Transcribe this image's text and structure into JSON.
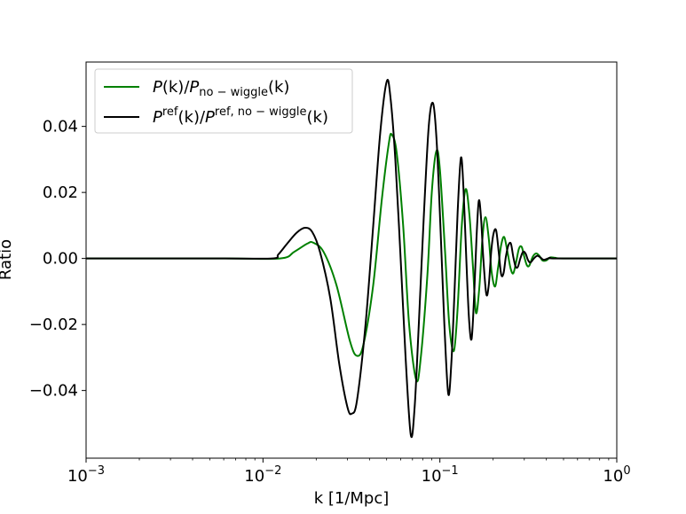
{
  "chart_data": {
    "type": "line",
    "xlabel": "k [1/Mpc]",
    "ylabel": "Ratio",
    "xscale": "log",
    "xlim": [
      0.001,
      1
    ],
    "ylim": [
      -0.0605,
      0.0595
    ],
    "x_ticks": [
      {
        "base": "10",
        "exp": "−3",
        "value": 0.001
      },
      {
        "base": "10",
        "exp": "−2",
        "value": 0.01
      },
      {
        "base": "10",
        "exp": "−1",
        "value": 0.1
      },
      {
        "base": "10",
        "exp": "0",
        "value": 1
      }
    ],
    "y_ticks": [
      {
        "label": "0.04",
        "value": 0.04
      },
      {
        "label": "0.02",
        "value": 0.02
      },
      {
        "label": "0.00",
        "value": 0.0
      },
      {
        "label": "−0.02",
        "value": -0.02
      },
      {
        "label": "−0.04",
        "value": -0.04
      }
    ],
    "grid": false,
    "legend_position": "top-left",
    "series": [
      {
        "name": "P(k)/P_no-wiggle(k)",
        "legend": {
          "main1": "P",
          "args1": "(k)/",
          "main2": "P",
          "sub2": "no − wiggle",
          "args2": "(k)"
        },
        "color": "#008000",
        "points": [
          [
            0.001,
            0
          ],
          [
            0.006,
            0
          ],
          [
            0.0125,
            0
          ],
          [
            0.015,
            0.002
          ],
          [
            0.0178,
            0.0045
          ],
          [
            0.0192,
            0.0048
          ],
          [
            0.022,
            0.002
          ],
          [
            0.026,
            -0.008
          ],
          [
            0.031,
            -0.025
          ],
          [
            0.034,
            -0.0295
          ],
          [
            0.037,
            -0.026
          ],
          [
            0.042,
            -0.008
          ],
          [
            0.047,
            0.018
          ],
          [
            0.0515,
            0.035
          ],
          [
            0.0535,
            0.0375
          ],
          [
            0.057,
            0.032
          ],
          [
            0.062,
            0.01
          ],
          [
            0.067,
            -0.02
          ],
          [
            0.0735,
            -0.0368
          ],
          [
            0.078,
            -0.03
          ],
          [
            0.085,
            -0.005
          ],
          [
            0.09,
            0.02
          ],
          [
            0.0955,
            0.0325
          ],
          [
            0.1,
            0.027
          ],
          [
            0.107,
            0.002
          ],
          [
            0.113,
            -0.02
          ],
          [
            0.12,
            -0.028
          ],
          [
            0.126,
            -0.015
          ],
          [
            0.133,
            0.01
          ],
          [
            0.14,
            0.021
          ],
          [
            0.147,
            0.013
          ],
          [
            0.154,
            -0.003
          ],
          [
            0.16,
            -0.0165
          ],
          [
            0.167,
            -0.009
          ],
          [
            0.174,
            0.006
          ],
          [
            0.181,
            0.0125
          ],
          [
            0.189,
            0.006
          ],
          [
            0.196,
            -0.004
          ],
          [
            0.205,
            -0.0085
          ],
          [
            0.213,
            -0.003
          ],
          [
            0.222,
            0.004
          ],
          [
            0.231,
            0.0065
          ],
          [
            0.241,
            0.002
          ],
          [
            0.251,
            -0.003
          ],
          [
            0.26,
            -0.0045
          ],
          [
            0.27,
            -0.001
          ],
          [
            0.28,
            0.003
          ],
          [
            0.29,
            0.0035
          ],
          [
            0.3,
            0.0005
          ],
          [
            0.31,
            -0.002
          ],
          [
            0.32,
            -0.0022
          ],
          [
            0.335,
            0.0005
          ],
          [
            0.35,
            0.0015
          ],
          [
            0.365,
            0.0008
          ],
          [
            0.38,
            -0.0006
          ],
          [
            0.4,
            -0.0006
          ],
          [
            0.42,
            0.0003
          ],
          [
            0.45,
            0.0002
          ],
          [
            0.5,
            0
          ],
          [
            1,
            0
          ]
        ]
      },
      {
        "name": "P^ref(k)/P^ref,no-wiggle(k)",
        "legend": {
          "main1": "P",
          "sup1": "ref",
          "args1": "(k)/",
          "main2": "P",
          "sup2": "ref, no − wiggle",
          "args2": "(k)"
        },
        "color": "#000000",
        "points": [
          [
            0.001,
            0
          ],
          [
            0.006,
            0
          ],
          [
            0.0113,
            0
          ],
          [
            0.0122,
            0.0012
          ],
          [
            0.0137,
            0.0045
          ],
          [
            0.0155,
            0.0078
          ],
          [
            0.0173,
            0.0093
          ],
          [
            0.019,
            0.008
          ],
          [
            0.021,
            0.002
          ],
          [
            0.024,
            -0.012
          ],
          [
            0.027,
            -0.032
          ],
          [
            0.03,
            -0.045
          ],
          [
            0.0318,
            -0.047
          ],
          [
            0.034,
            -0.043
          ],
          [
            0.038,
            -0.02
          ],
          [
            0.042,
            0.01
          ],
          [
            0.046,
            0.038
          ],
          [
            0.05,
            0.0535
          ],
          [
            0.0525,
            0.049
          ],
          [
            0.056,
            0.03
          ],
          [
            0.06,
            0
          ],
          [
            0.064,
            -0.03
          ],
          [
            0.0685,
            -0.0535
          ],
          [
            0.072,
            -0.045
          ],
          [
            0.076,
            -0.02
          ],
          [
            0.081,
            0.012
          ],
          [
            0.0865,
            0.04
          ],
          [
            0.0915,
            0.047
          ],
          [
            0.096,
            0.035
          ],
          [
            0.101,
            0.008
          ],
          [
            0.106,
            -0.02
          ],
          [
            0.1115,
            -0.041
          ],
          [
            0.116,
            -0.032
          ],
          [
            0.121,
            -0.01
          ],
          [
            0.126,
            0.014
          ],
          [
            0.1315,
            0.0305
          ],
          [
            0.136,
            0.021
          ],
          [
            0.141,
            0
          ],
          [
            0.146,
            -0.018
          ],
          [
            0.151,
            -0.0245
          ],
          [
            0.156,
            -0.012
          ],
          [
            0.161,
            0.006
          ],
          [
            0.166,
            0.0175
          ],
          [
            0.171,
            0.012
          ],
          [
            0.176,
            0
          ],
          [
            0.183,
            -0.0108
          ],
          [
            0.189,
            -0.008
          ],
          [
            0.195,
            0.002
          ],
          [
            0.201,
            0.0075
          ],
          [
            0.208,
            0.0085
          ],
          [
            0.215,
            0.002
          ],
          [
            0.222,
            -0.0048
          ],
          [
            0.229,
            -0.0045
          ],
          [
            0.236,
            0.0005
          ],
          [
            0.244,
            0.004
          ],
          [
            0.252,
            0.0045
          ],
          [
            0.26,
            0.0005
          ],
          [
            0.268,
            -0.0025
          ],
          [
            0.276,
            -0.0025
          ],
          [
            0.285,
            0
          ],
          [
            0.295,
            0.002
          ],
          [
            0.305,
            0.0015
          ],
          [
            0.315,
            -0.0005
          ],
          [
            0.325,
            -0.0012
          ],
          [
            0.34,
            0
          ],
          [
            0.355,
            0.0008
          ],
          [
            0.37,
            0.0003
          ],
          [
            0.385,
            -0.0004
          ],
          [
            0.4,
            -0.0002
          ],
          [
            0.42,
            0.0002
          ],
          [
            0.45,
            0
          ],
          [
            1,
            0
          ]
        ]
      }
    ]
  }
}
